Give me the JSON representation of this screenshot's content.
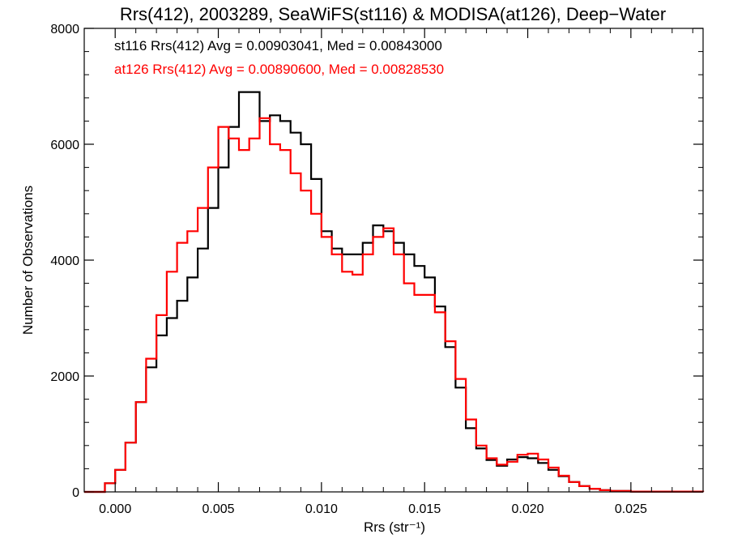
{
  "chart_data": {
    "type": "line",
    "title": "Rrs(412), 2003289, SeaWiFS(st116) & MODISA(at126), Deep−Water",
    "xlabel": "Rrs (str⁻¹)",
    "ylabel": "Number of Observations",
    "xlim": [
      -0.0015,
      0.0285
    ],
    "ylim": [
      0,
      8000
    ],
    "xticks": [
      0.0,
      0.005,
      0.01,
      0.015,
      0.02,
      0.025
    ],
    "xtick_labels": [
      "0.000",
      "0.005",
      "0.010",
      "0.015",
      "0.020",
      "0.025"
    ],
    "yticks": [
      0,
      2000,
      4000,
      6000,
      8000
    ],
    "ytick_labels": [
      "0",
      "2000",
      "4000",
      "6000",
      "8000"
    ],
    "grid": false,
    "step": true,
    "annotations": [
      {
        "text": "st116 Rrs(412) Avg = 0.00903041, Med = 0.00843000",
        "color": "#000000"
      },
      {
        "text": "at126 Rrs(412) Avg = 0.00890600, Med = 0.00828530",
        "color": "#ff0000"
      }
    ],
    "series": [
      {
        "id": "st116",
        "color": "#000000",
        "x": [
          -0.0015,
          -0.0005,
          0.0,
          0.0005,
          0.001,
          0.0015,
          0.002,
          0.0025,
          0.003,
          0.0035,
          0.004,
          0.0045,
          0.005,
          0.0055,
          0.006,
          0.0065,
          0.007,
          0.0075,
          0.008,
          0.0085,
          0.009,
          0.0095,
          0.01,
          0.0105,
          0.011,
          0.0115,
          0.012,
          0.0125,
          0.013,
          0.0135,
          0.014,
          0.0145,
          0.015,
          0.0155,
          0.016,
          0.0165,
          0.017,
          0.0175,
          0.018,
          0.0185,
          0.019,
          0.0195,
          0.02,
          0.0205,
          0.021,
          0.0215,
          0.022,
          0.0225,
          0.023,
          0.0235,
          0.024,
          0.025,
          0.0285
        ],
        "values": [
          0,
          150,
          380,
          850,
          1550,
          2150,
          2700,
          3000,
          3300,
          3700,
          4200,
          4900,
          5600,
          6300,
          6900,
          6900,
          6400,
          6500,
          6400,
          6200,
          6000,
          5400,
          4500,
          4200,
          4100,
          4100,
          4300,
          4600,
          4500,
          4300,
          4100,
          3900,
          3700,
          3200,
          2500,
          1800,
          1100,
          750,
          550,
          450,
          560,
          600,
          580,
          500,
          380,
          270,
          170,
          100,
          55,
          30,
          15,
          5,
          0
        ]
      },
      {
        "id": "at126",
        "color": "#ff0000",
        "x": [
          -0.0015,
          -0.0005,
          0.0,
          0.0005,
          0.001,
          0.0015,
          0.002,
          0.0025,
          0.003,
          0.0035,
          0.004,
          0.0045,
          0.005,
          0.0055,
          0.006,
          0.0065,
          0.007,
          0.0075,
          0.008,
          0.0085,
          0.009,
          0.0095,
          0.01,
          0.0105,
          0.011,
          0.0115,
          0.012,
          0.0125,
          0.013,
          0.0135,
          0.014,
          0.0145,
          0.015,
          0.0155,
          0.016,
          0.0165,
          0.017,
          0.0175,
          0.018,
          0.0185,
          0.019,
          0.0195,
          0.02,
          0.0205,
          0.021,
          0.0215,
          0.022,
          0.0225,
          0.023,
          0.0235,
          0.024,
          0.025,
          0.0285
        ],
        "values": [
          0,
          150,
          380,
          850,
          1550,
          2300,
          3050,
          3800,
          4300,
          4500,
          4900,
          5600,
          6300,
          6100,
          5900,
          6100,
          6450,
          6000,
          5900,
          5500,
          5200,
          4800,
          4400,
          4100,
          3800,
          3750,
          4100,
          4400,
          4550,
          4100,
          3600,
          3400,
          3400,
          3100,
          2600,
          1950,
          1250,
          800,
          580,
          470,
          520,
          640,
          660,
          560,
          420,
          280,
          170,
          100,
          55,
          30,
          15,
          5,
          0
        ]
      }
    ]
  }
}
